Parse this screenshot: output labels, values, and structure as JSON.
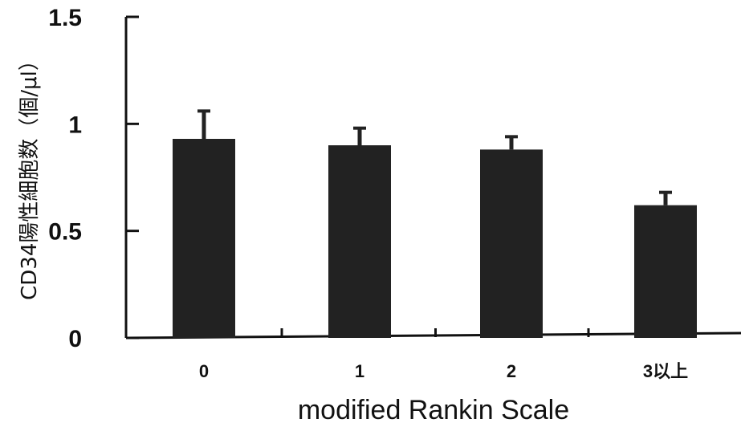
{
  "chart_data": {
    "type": "bar",
    "categories": [
      "0",
      "1",
      "2",
      "3以上"
    ],
    "values": [
      0.93,
      0.9,
      0.88,
      0.62
    ],
    "errors": [
      0.13,
      0.08,
      0.06,
      0.06
    ],
    "xlabel": "modified Rankin Scale",
    "ylabel": "CD34陽性細胞数（個/μl）",
    "ylim": [
      0,
      1.5
    ],
    "yticks": [
      0,
      0.5,
      1,
      1.5
    ],
    "ytick_labels": [
      "0",
      "0.5",
      "1",
      "1.5"
    ],
    "grid": false,
    "bar_color": "#222222"
  }
}
